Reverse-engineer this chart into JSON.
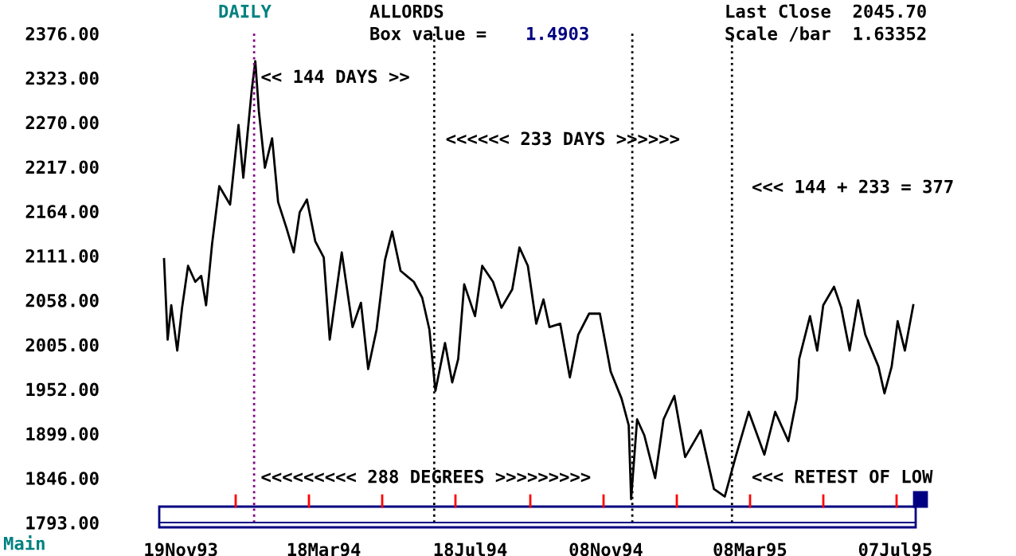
{
  "chart_data": {
    "type": "line",
    "title": "ALLORDS",
    "x": [
      "1993-11-05",
      "1993-11-08",
      "1993-11-11",
      "1993-11-16",
      "1993-11-20",
      "1993-11-25",
      "1993-12-01",
      "1993-12-06",
      "1993-12-10",
      "1993-12-15",
      "1993-12-21",
      "1993-12-30",
      "1994-01-06",
      "1994-01-10",
      "1994-01-17",
      "1994-01-20",
      "1994-01-23",
      "1994-01-28",
      "1994-02-03",
      "1994-02-08",
      "1994-02-15",
      "1994-02-21",
      "1994-02-26",
      "1994-03-04",
      "1994-03-11",
      "1994-03-18",
      "1994-03-23",
      "1994-04-02",
      "1994-04-11",
      "1994-04-18",
      "1994-04-24",
      "1994-05-01",
      "1994-05-08",
      "1994-05-14",
      "1994-05-21",
      "1994-06-01",
      "1994-06-08",
      "1994-06-14",
      "1994-06-19",
      "1994-06-27",
      "1994-07-03",
      "1994-07-08",
      "1994-07-13",
      "1994-07-22",
      "1994-07-28",
      "1994-08-06",
      "1994-08-13",
      "1994-08-22",
      "1994-08-28",
      "1994-09-04",
      "1994-09-11",
      "1994-09-17",
      "1994-09-22",
      "1994-10-01",
      "1994-10-09",
      "1994-10-16",
      "1994-10-25",
      "1994-11-03",
      "1994-11-12",
      "1994-11-21",
      "1994-11-27",
      "1994-11-29",
      "1994-12-04",
      "1994-12-10",
      "1994-12-19",
      "1994-12-26",
      "1995-01-04",
      "1995-01-13",
      "1995-01-26",
      "1995-02-06",
      "1995-02-15",
      "1995-02-24",
      "1995-03-07",
      "1995-03-20",
      "1995-03-29",
      "1995-04-09",
      "1995-04-16",
      "1995-04-18",
      "1995-04-27",
      "1995-05-03",
      "1995-05-08",
      "1995-05-17",
      "1995-05-23",
      "1995-05-30",
      "1995-06-06",
      "1995-06-12",
      "1995-06-23",
      "1995-06-28",
      "1995-07-04",
      "1995-07-09",
      "1995-07-15",
      "1995-07-22"
    ],
    "series": [
      {
        "color": "#000000",
        "values": [
          2107,
          2011,
          2052,
          1998,
          2049,
          2099,
          2080,
          2087,
          2052,
          2125,
          2194,
          2172,
          2267,
          2204,
          2308,
          2343,
          2283,
          2216,
          2251,
          2175,
          2144,
          2115,
          2163,
          2178,
          2128,
          2109,
          2011,
          2115,
          2026,
          2055,
          1976,
          2023,
          2106,
          2140,
          2093,
          2080,
          2061,
          2023,
          1950,
          2007,
          1960,
          1988,
          2077,
          2039,
          2099,
          2080,
          2049,
          2071,
          2121,
          2099,
          2030,
          2059,
          2026,
          2030,
          1966,
          2017,
          2042,
          2042,
          1973,
          1941,
          1909,
          1821,
          1916,
          1897,
          1846,
          1916,
          1944,
          1871,
          1903,
          1833,
          1824,
          1871,
          1925,
          1874,
          1925,
          1890,
          1941,
          1988,
          2039,
          1998,
          2052,
          2074,
          2049,
          1998,
          2058,
          2017,
          1979,
          1947,
          1979,
          2033,
          1998,
          2052
        ]
      }
    ],
    "xlim": [
      "1993-11-01",
      "1995-07-24"
    ],
    "xticks": [
      {
        "value": "1993-11-19",
        "label": "19Nov93"
      },
      {
        "value": "1994-03-18",
        "label": "18Mar94"
      },
      {
        "value": "1994-07-18",
        "label": "18Jul94"
      },
      {
        "value": "1994-11-08",
        "label": "08Nov94"
      },
      {
        "value": "1995-03-08",
        "label": "08Mar95"
      },
      {
        "value": "1995-07-07",
        "label": "07Jul95"
      }
    ],
    "ylim": [
      1793,
      2376
    ],
    "yticks": [
      {
        "value": 1793,
        "label": "1793.00"
      },
      {
        "value": 1846,
        "label": "1846.00"
      },
      {
        "value": 1899,
        "label": "1899.00"
      },
      {
        "value": 1952,
        "label": "1952.00"
      },
      {
        "value": 2005,
        "label": "2005.00"
      },
      {
        "value": 2058,
        "label": "2058.00"
      },
      {
        "value": 2111,
        "label": "2111.00"
      },
      {
        "value": 2164,
        "label": "2164.00"
      },
      {
        "value": 2217,
        "label": "2217.00"
      },
      {
        "value": 2270,
        "label": "2270.00"
      },
      {
        "value": 2323,
        "label": "2323.00"
      },
      {
        "value": 2376,
        "label": "2376.00"
      }
    ],
    "ref_lines": [
      {
        "axis": "x",
        "value": "1994-01-19",
        "label": null,
        "color": "#800080",
        "line_style": "dotted"
      },
      {
        "axis": "x",
        "value": "1994-06-18",
        "label": null,
        "color": "#000000",
        "line_style": "dotted"
      },
      {
        "axis": "x",
        "value": "1994-11-30",
        "label": null,
        "color": "#000000",
        "line_style": "dotted"
      },
      {
        "axis": "x",
        "value": "1995-02-21",
        "label": null,
        "color": "#000000",
        "line_style": "dotted"
      }
    ],
    "annotations": [
      {
        "text": "<< 144 DAYS >>",
        "x": "1994-01-19",
        "y": 2323
      },
      {
        "text": "<<<<<< 233 DAYS >>>>>>",
        "x": "1994-06-22",
        "y": 2249
      },
      "<<< 144 + 233 = 377",
      {
        "text": "<<<<<<<<< 288 DEGREES >>>>>>>>>",
        "x": "1994-01-19",
        "y": 1846
      },
      "<<< RETEST OF LOW",
      "DAILY",
      "Box value =",
      "1.4903",
      "Last Close  2045.70",
      "Scale /bar  1.63352",
      "Main"
    ],
    "grid": false,
    "legend": false,
    "line_style": "solid",
    "marker": "none"
  }
}
